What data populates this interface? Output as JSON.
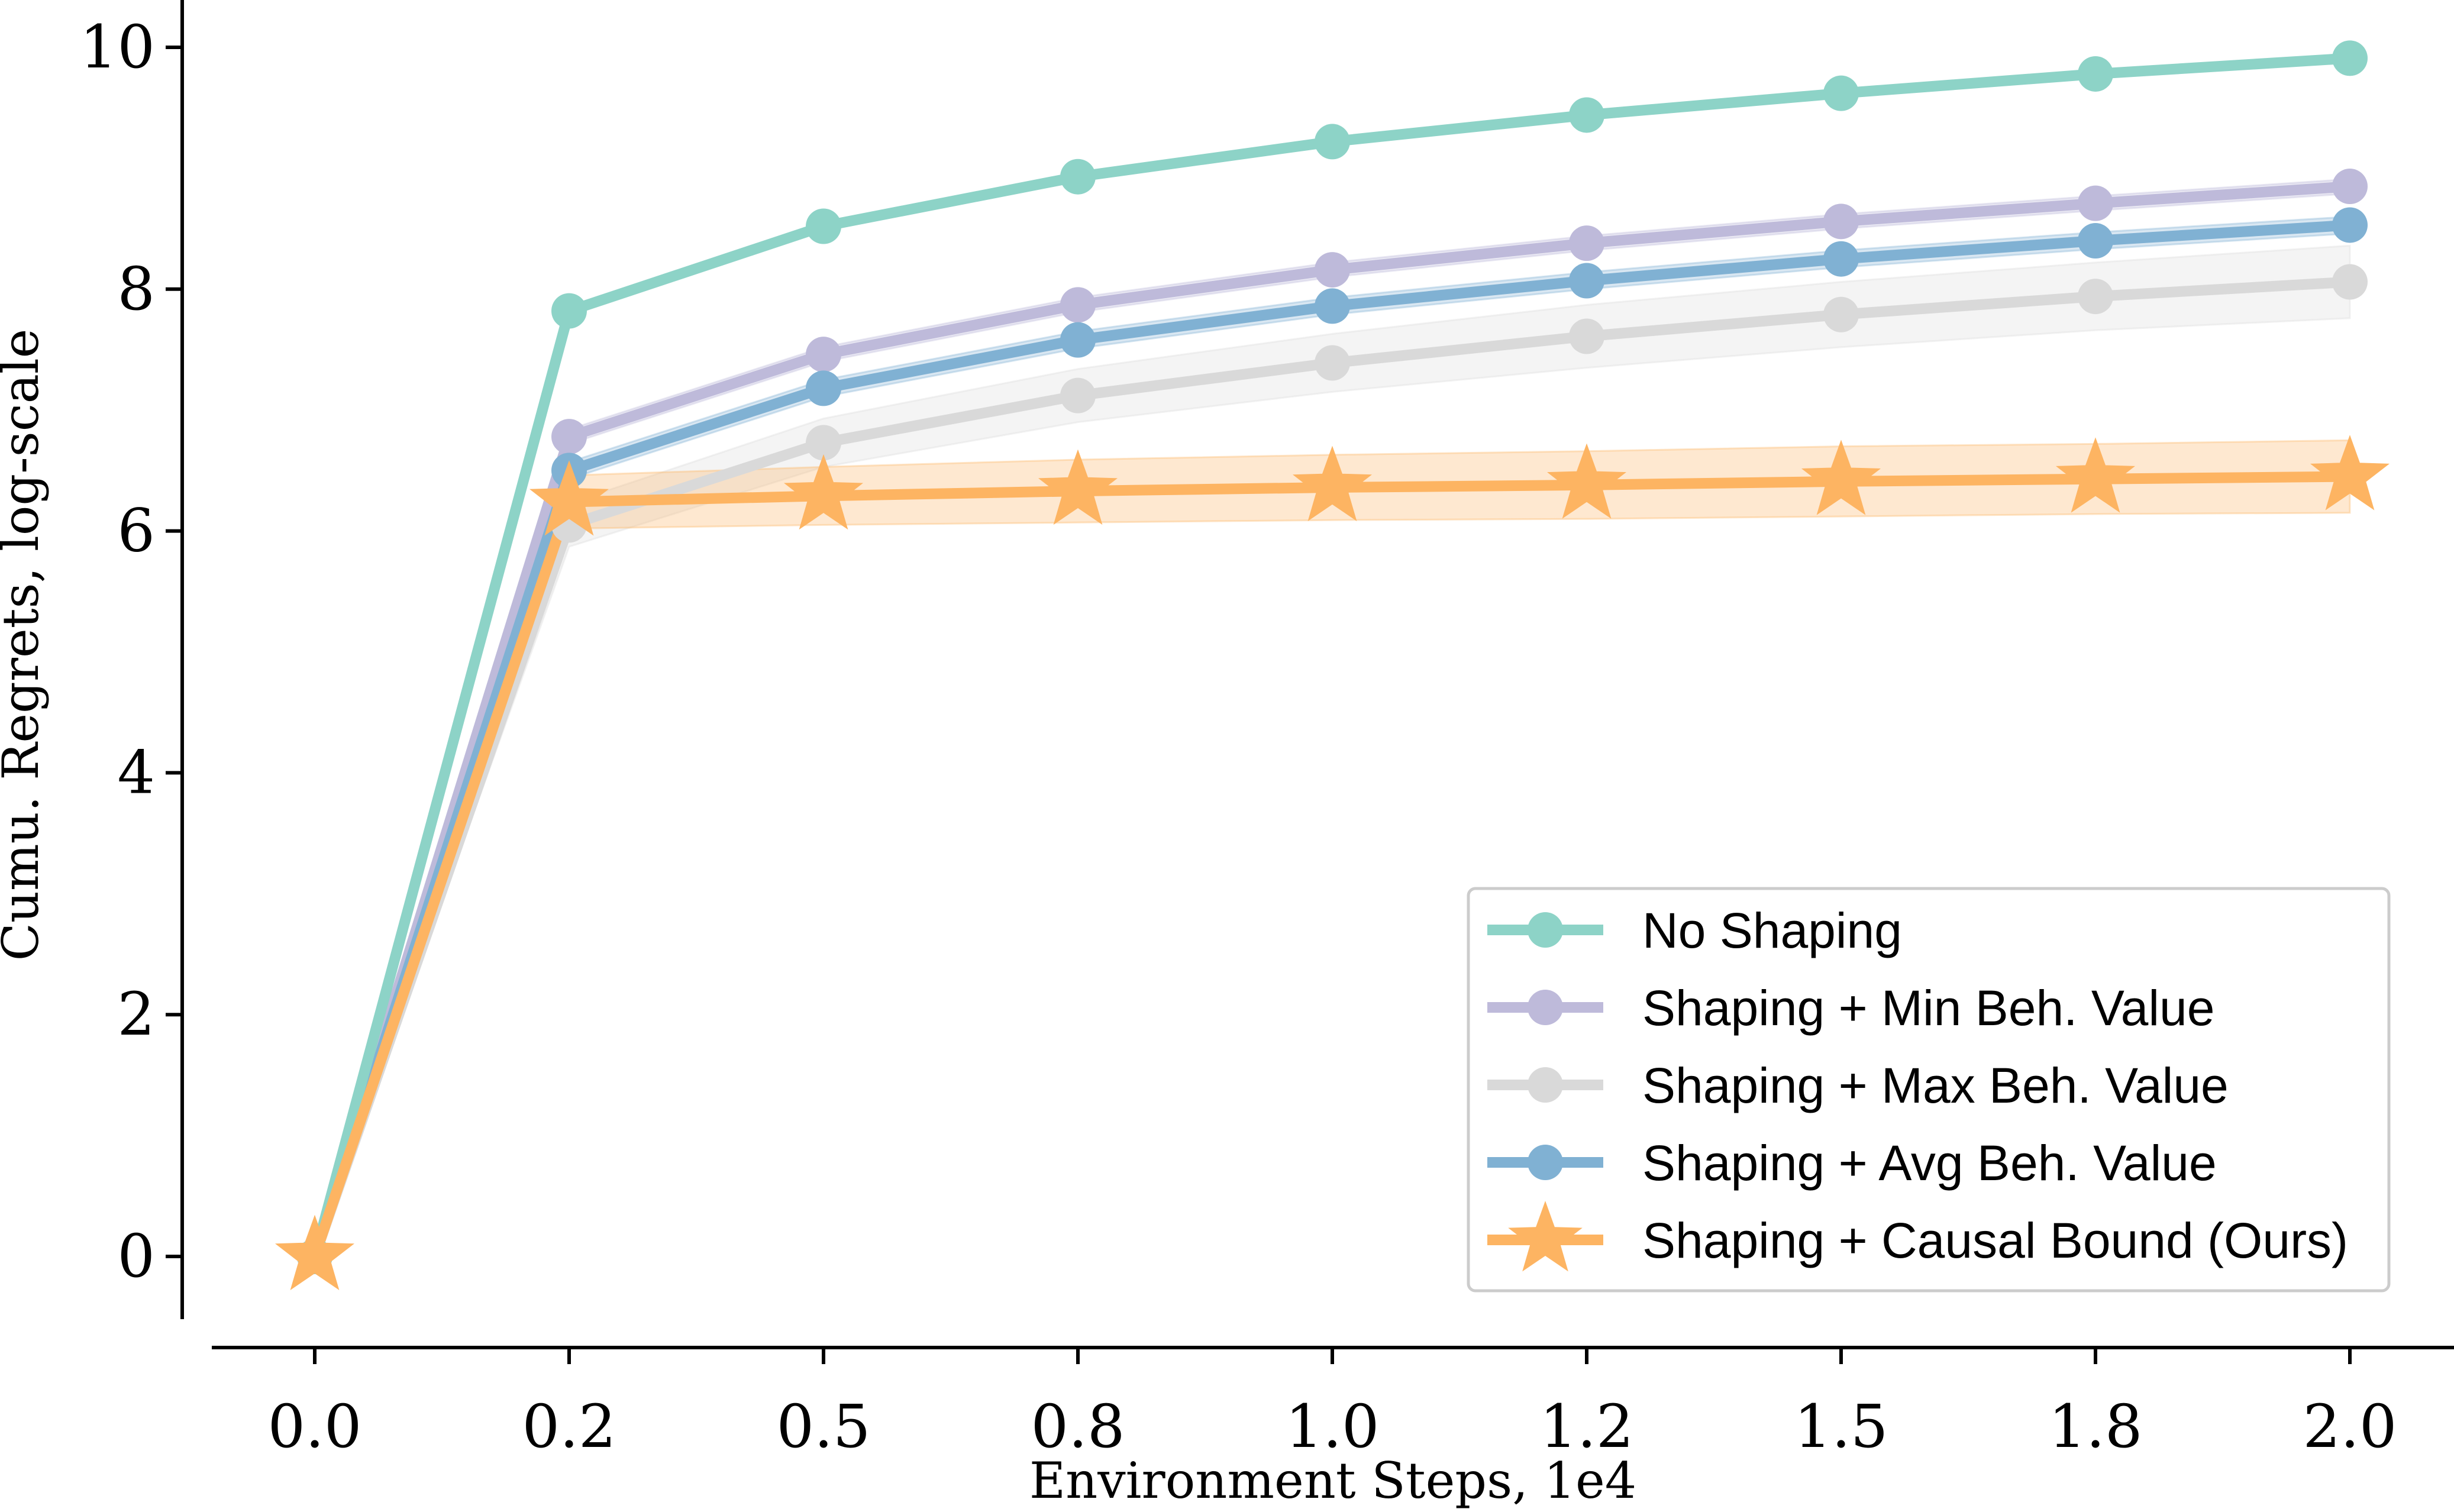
{
  "chart_data": {
    "type": "line",
    "title": "",
    "xlabel": "Environment Steps, 1e4",
    "ylabel": "Cumu. Regrets, log-scale",
    "x": [
      0.0,
      0.25,
      0.5,
      0.75,
      1.0,
      1.25,
      1.5,
      1.75,
      2.0
    ],
    "x_tick_labels": [
      "0.0",
      "0.2",
      "0.5",
      "0.8",
      "1.0",
      "1.2",
      "1.5",
      "1.8",
      "2.0"
    ],
    "y_ticks": [
      0,
      2,
      4,
      6,
      8,
      10
    ],
    "y_tick_labels": [
      "0",
      "2",
      "4",
      "6",
      "8",
      "10"
    ],
    "xlim": [
      -0.13,
      2.1
    ],
    "ylim": [
      -0.55,
      10.4
    ],
    "grid": false,
    "legend_position": "lower right",
    "series": [
      {
        "name": "No Shaping",
        "color": "#8dd3c7",
        "marker": "circle",
        "values": [
          0.0,
          7.82,
          8.52,
          8.93,
          9.22,
          9.44,
          9.62,
          9.78,
          9.91
        ],
        "band": [
          0.0,
          0.02,
          0.02,
          0.02,
          0.02,
          0.02,
          0.02,
          0.02,
          0.02
        ]
      },
      {
        "name": "Shaping + Min Beh. Value",
        "color": "#bebada",
        "marker": "circle",
        "values": [
          0.0,
          6.78,
          7.46,
          7.87,
          8.16,
          8.38,
          8.56,
          8.71,
          8.85
        ],
        "band": [
          0.0,
          0.06,
          0.06,
          0.06,
          0.06,
          0.06,
          0.06,
          0.06,
          0.06
        ]
      },
      {
        "name": "Shaping + Max Beh. Value",
        "color": "#d9d9d9",
        "marker": "circle",
        "values": [
          0.0,
          6.05,
          6.73,
          7.12,
          7.39,
          7.61,
          7.79,
          7.94,
          8.06
        ],
        "band": [
          0.0,
          0.18,
          0.2,
          0.22,
          0.24,
          0.26,
          0.27,
          0.28,
          0.3
        ]
      },
      {
        "name": "Shaping + Avg Beh. Value",
        "color": "#80b1d3",
        "marker": "circle",
        "values": [
          0.0,
          6.5,
          7.18,
          7.58,
          7.86,
          8.07,
          8.25,
          8.4,
          8.53
        ],
        "band": [
          0.0,
          0.07,
          0.07,
          0.07,
          0.07,
          0.07,
          0.07,
          0.07,
          0.07
        ]
      },
      {
        "name": "Shaping + Causal Bound (Ours)",
        "color": "#fdb462",
        "marker": "star",
        "values": [
          0.0,
          6.24,
          6.29,
          6.33,
          6.36,
          6.38,
          6.41,
          6.43,
          6.45
        ],
        "band": [
          0.0,
          0.22,
          0.24,
          0.26,
          0.27,
          0.28,
          0.29,
          0.29,
          0.3
        ]
      }
    ]
  }
}
